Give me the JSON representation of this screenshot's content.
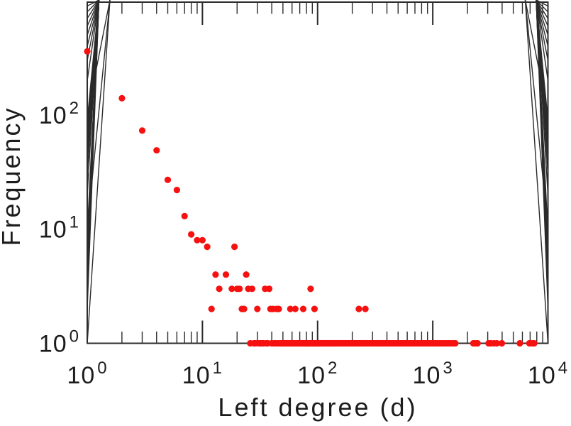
{
  "figure": {
    "background": "#ffffff",
    "axis_color": "#2b2b2b",
    "text_color": "#1c1c1c"
  },
  "chart_data": {
    "type": "scatter",
    "title": "",
    "xlabel": "Left degree (d)",
    "ylabel": "Frequency",
    "x_scale": "log",
    "y_scale": "log",
    "xlim": [
      1,
      10000
    ],
    "ylim": [
      1,
      1000
    ],
    "grid": false,
    "legend": null,
    "tick_label_base": "10",
    "x_tick_exponents": [
      0,
      1,
      2,
      3,
      4
    ],
    "y_tick_exponents": [
      0,
      1,
      2
    ],
    "marker": {
      "shape": "circle",
      "color": "#f61111",
      "radius": 4.6
    },
    "series_name": "left-degree-frequency",
    "points": [
      [
        1,
        360
      ],
      [
        2,
        140
      ],
      [
        3,
        73
      ],
      [
        4,
        49
      ],
      [
        5,
        27
      ],
      [
        6,
        22
      ],
      [
        7,
        13
      ],
      [
        8,
        9
      ],
      [
        9,
        8
      ],
      [
        10,
        8
      ],
      [
        11,
        7
      ],
      [
        19,
        7
      ],
      [
        13,
        4
      ],
      [
        16,
        4
      ],
      [
        24,
        4
      ],
      [
        14,
        3
      ],
      [
        18,
        3
      ],
      [
        20,
        3
      ],
      [
        21,
        3
      ],
      [
        25,
        3
      ],
      [
        27,
        3
      ],
      [
        35,
        3
      ],
      [
        38,
        3
      ],
      [
        87,
        3
      ],
      [
        12,
        2
      ],
      [
        22,
        2
      ],
      [
        23,
        2
      ],
      [
        30,
        2
      ],
      [
        39,
        2
      ],
      [
        41,
        2
      ],
      [
        44,
        2
      ],
      [
        46,
        2
      ],
      [
        58,
        2
      ],
      [
        64,
        2
      ],
      [
        75,
        2
      ],
      [
        94,
        2
      ],
      [
        228,
        2
      ],
      [
        260,
        2
      ],
      [
        26,
        1
      ],
      [
        28,
        1
      ],
      [
        29,
        1
      ],
      [
        31,
        1
      ],
      [
        32,
        1
      ],
      [
        33,
        1
      ],
      [
        34,
        1
      ],
      [
        36,
        1
      ],
      [
        37,
        1
      ],
      [
        40,
        1
      ],
      [
        42,
        1
      ],
      [
        43,
        1
      ],
      [
        45,
        1
      ],
      [
        47,
        1
      ],
      [
        48,
        1
      ],
      [
        50,
        1
      ],
      [
        51,
        1
      ],
      [
        52,
        1
      ],
      [
        53,
        1
      ],
      [
        54,
        1
      ],
      [
        55,
        1
      ],
      [
        56,
        1
      ],
      [
        57,
        1
      ],
      [
        59,
        1
      ],
      [
        60,
        1
      ],
      [
        61,
        1
      ],
      [
        62,
        1
      ],
      [
        63,
        1
      ],
      [
        65,
        1
      ],
      [
        66,
        1
      ],
      [
        67,
        1
      ],
      [
        68,
        1
      ],
      [
        70,
        1
      ],
      [
        71,
        1
      ],
      [
        72,
        1
      ],
      [
        73,
        1
      ],
      [
        74,
        1
      ],
      [
        76,
        1
      ],
      [
        77,
        1
      ],
      [
        78,
        1
      ],
      [
        79,
        1
      ],
      [
        80,
        1
      ],
      [
        81,
        1
      ],
      [
        82,
        1
      ],
      [
        83,
        1
      ],
      [
        84,
        1
      ],
      [
        85,
        1
      ],
      [
        86,
        1
      ],
      [
        89,
        1
      ],
      [
        90,
        1
      ],
      [
        91,
        1
      ],
      [
        92,
        1
      ],
      [
        93,
        1
      ],
      [
        95,
        1
      ],
      [
        96,
        1
      ],
      [
        97,
        1
      ],
      [
        98,
        1
      ],
      [
        99,
        1
      ],
      [
        100,
        1
      ],
      [
        102,
        1
      ],
      [
        104,
        1
      ],
      [
        106,
        1
      ],
      [
        108,
        1
      ],
      [
        110,
        1
      ],
      [
        112,
        1
      ],
      [
        114,
        1
      ],
      [
        116,
        1
      ],
      [
        118,
        1
      ],
      [
        120,
        1
      ],
      [
        122,
        1
      ],
      [
        125,
        1
      ],
      [
        128,
        1
      ],
      [
        131,
        1
      ],
      [
        134,
        1
      ],
      [
        137,
        1
      ],
      [
        140,
        1
      ],
      [
        143,
        1
      ],
      [
        146,
        1
      ],
      [
        150,
        1
      ],
      [
        153,
        1
      ],
      [
        157,
        1
      ],
      [
        160,
        1
      ],
      [
        164,
        1
      ],
      [
        168,
        1
      ],
      [
        172,
        1
      ],
      [
        176,
        1
      ],
      [
        180,
        1
      ],
      [
        185,
        1
      ],
      [
        190,
        1
      ],
      [
        195,
        1
      ],
      [
        200,
        1
      ],
      [
        205,
        1
      ],
      [
        210,
        1
      ],
      [
        215,
        1
      ],
      [
        220,
        1
      ],
      [
        225,
        1
      ],
      [
        232,
        1
      ],
      [
        238,
        1
      ],
      [
        245,
        1
      ],
      [
        252,
        1
      ],
      [
        258,
        1
      ],
      [
        265,
        1
      ],
      [
        272,
        1
      ],
      [
        280,
        1
      ],
      [
        288,
        1
      ],
      [
        296,
        1
      ],
      [
        305,
        1
      ],
      [
        315,
        1
      ],
      [
        325,
        1
      ],
      [
        335,
        1
      ],
      [
        345,
        1
      ],
      [
        355,
        1
      ],
      [
        365,
        1
      ],
      [
        375,
        1
      ],
      [
        385,
        1
      ],
      [
        395,
        1
      ],
      [
        410,
        1
      ],
      [
        425,
        1
      ],
      [
        440,
        1
      ],
      [
        455,
        1
      ],
      [
        470,
        1
      ],
      [
        485,
        1
      ],
      [
        500,
        1
      ],
      [
        515,
        1
      ],
      [
        530,
        1
      ],
      [
        545,
        1
      ],
      [
        560,
        1
      ],
      [
        580,
        1
      ],
      [
        600,
        1
      ],
      [
        620,
        1
      ],
      [
        640,
        1
      ],
      [
        660,
        1
      ],
      [
        685,
        1
      ],
      [
        710,
        1
      ],
      [
        735,
        1
      ],
      [
        760,
        1
      ],
      [
        790,
        1
      ],
      [
        820,
        1
      ],
      [
        850,
        1
      ],
      [
        880,
        1
      ],
      [
        915,
        1
      ],
      [
        950,
        1
      ],
      [
        985,
        1
      ],
      [
        1020,
        1
      ],
      [
        1060,
        1
      ],
      [
        1100,
        1
      ],
      [
        1150,
        1
      ],
      [
        1200,
        1
      ],
      [
        1250,
        1
      ],
      [
        1310,
        1
      ],
      [
        1370,
        1
      ],
      [
        1430,
        1
      ],
      [
        1500,
        1
      ],
      [
        1570,
        1
      ],
      [
        2250,
        1
      ],
      [
        2350,
        1
      ],
      [
        2450,
        1
      ],
      [
        3050,
        1
      ],
      [
        3200,
        1
      ],
      [
        3400,
        1
      ],
      [
        3600,
        1
      ],
      [
        3980,
        1
      ],
      [
        5700,
        1
      ],
      [
        6900,
        1
      ],
      [
        7300,
        1
      ],
      [
        7600,
        1
      ]
    ]
  }
}
